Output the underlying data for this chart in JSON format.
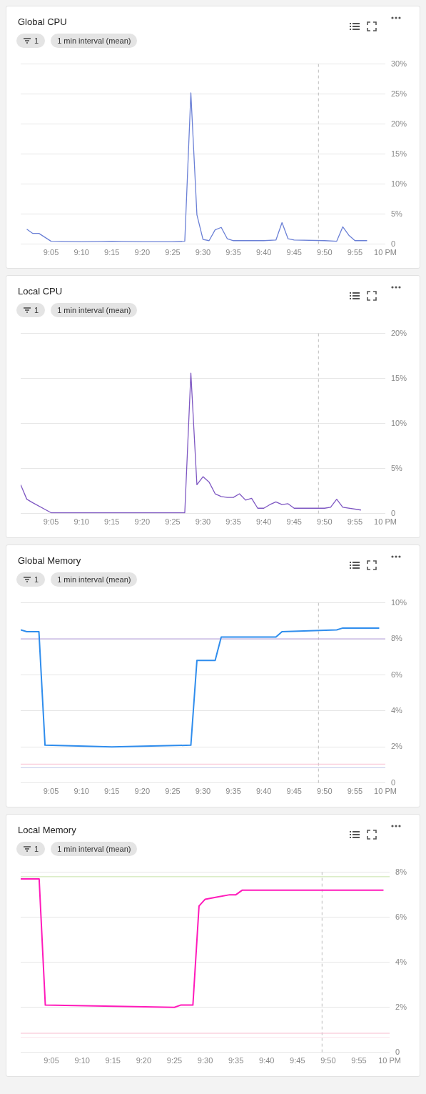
{
  "chart_data": [
    {
      "type": "line",
      "title": "Global CPU",
      "subtitle": "1 min interval (mean)",
      "annotations": [
        "1"
      ],
      "xlim": [
        9.0,
        10.0
      ],
      "xticks": [
        {
          "value": 9.0833,
          "label": "9:05"
        },
        {
          "value": 9.1667,
          "label": "9:10"
        },
        {
          "value": 9.25,
          "label": "9:15"
        },
        {
          "value": 9.3333,
          "label": "9:20"
        },
        {
          "value": 9.4167,
          "label": "9:25"
        },
        {
          "value": 9.5,
          "label": "9:30"
        },
        {
          "value": 9.5833,
          "label": "9:35"
        },
        {
          "value": 9.6667,
          "label": "9:40"
        },
        {
          "value": 9.75,
          "label": "9:45"
        },
        {
          "value": 9.8333,
          "label": "9:50"
        },
        {
          "value": 9.9167,
          "label": "9:55"
        },
        {
          "value": 10.0,
          "label": "10 PM"
        }
      ],
      "ylim": [
        0,
        30
      ],
      "yticks": [
        {
          "value": 0,
          "label": "0"
        },
        {
          "value": 5,
          "label": "5%"
        },
        {
          "value": 10,
          "label": "10%"
        },
        {
          "value": 15,
          "label": "15%"
        },
        {
          "value": 20,
          "label": "20%"
        },
        {
          "value": 25,
          "label": "25%"
        },
        {
          "value": 30,
          "label": "30%"
        }
      ],
      "grid": "y",
      "legend": false,
      "marker": "none",
      "line_style": "solid",
      "ref_lines": [
        {
          "axis": "x",
          "value": 9.8167,
          "color": "#bdbdbd",
          "line_style": "dashed"
        }
      ],
      "series": [
        {
          "color": "#6b80d6",
          "x": [
            9.0167,
            9.0333,
            9.05,
            9.0833,
            9.1667,
            9.25,
            9.3333,
            9.4167,
            9.45,
            9.4667,
            9.4833,
            9.5,
            9.5167,
            9.5333,
            9.55,
            9.5667,
            9.5833,
            9.6667,
            9.7,
            9.7167,
            9.7333,
            9.75,
            9.8333,
            9.8667,
            9.8833,
            9.9,
            9.9167,
            9.95
          ],
          "values": [
            2.5,
            1.8,
            1.8,
            0.5,
            0.4,
            0.5,
            0.4,
            0.4,
            0.5,
            25.2,
            4.9,
            0.8,
            0.6,
            2.4,
            2.8,
            0.9,
            0.6,
            0.6,
            0.7,
            3.6,
            0.9,
            0.7,
            0.6,
            0.5,
            2.9,
            1.5,
            0.6,
            0.6
          ]
        }
      ]
    },
    {
      "type": "line",
      "title": "Local CPU",
      "subtitle": "1 min interval (mean)",
      "annotations": [
        "1"
      ],
      "xlim": [
        9.0,
        10.0
      ],
      "xticks": [
        {
          "value": 9.0833,
          "label": "9:05"
        },
        {
          "value": 9.1667,
          "label": "9:10"
        },
        {
          "value": 9.25,
          "label": "9:15"
        },
        {
          "value": 9.3333,
          "label": "9:20"
        },
        {
          "value": 9.4167,
          "label": "9:25"
        },
        {
          "value": 9.5,
          "label": "9:30"
        },
        {
          "value": 9.5833,
          "label": "9:35"
        },
        {
          "value": 9.6667,
          "label": "9:40"
        },
        {
          "value": 9.75,
          "label": "9:45"
        },
        {
          "value": 9.8333,
          "label": "9:50"
        },
        {
          "value": 9.9167,
          "label": "9:55"
        },
        {
          "value": 10.0,
          "label": "10 PM"
        }
      ],
      "ylim": [
        0,
        20
      ],
      "yticks": [
        {
          "value": 0,
          "label": "0"
        },
        {
          "value": 5,
          "label": "5%"
        },
        {
          "value": 10,
          "label": "10%"
        },
        {
          "value": 15,
          "label": "15%"
        },
        {
          "value": 20,
          "label": "20%"
        }
      ],
      "grid": "y",
      "legend": false,
      "marker": "none",
      "line_style": "solid",
      "ref_lines": [
        {
          "axis": "x",
          "value": 9.8167,
          "color": "#bdbdbd",
          "line_style": "dashed"
        }
      ],
      "series": [
        {
          "color": "#7e57c2",
          "x": [
            9.0,
            9.0167,
            9.0333,
            9.0833,
            9.25,
            9.45,
            9.4667,
            9.4833,
            9.5,
            9.5167,
            9.5333,
            9.55,
            9.5667,
            9.5833,
            9.6,
            9.6167,
            9.6333,
            9.65,
            9.6667,
            9.6833,
            9.7,
            9.7167,
            9.7333,
            9.75,
            9.8333,
            9.85,
            9.8667,
            9.8833,
            9.9333
          ],
          "values": [
            3.2,
            1.6,
            1.2,
            0.1,
            0.1,
            0.1,
            15.6,
            3.2,
            4.1,
            3.5,
            2.2,
            1.9,
            1.8,
            1.8,
            2.2,
            1.5,
            1.7,
            0.6,
            0.6,
            1.0,
            1.3,
            1.0,
            1.1,
            0.6,
            0.6,
            0.7,
            1.6,
            0.7,
            0.4
          ]
        }
      ]
    },
    {
      "type": "line",
      "title": "Global Memory",
      "subtitle": "1 min interval (mean)",
      "annotations": [
        "1"
      ],
      "xlim": [
        9.0,
        10.0
      ],
      "xticks": [
        {
          "value": 9.0833,
          "label": "9:05"
        },
        {
          "value": 9.1667,
          "label": "9:10"
        },
        {
          "value": 9.25,
          "label": "9:15"
        },
        {
          "value": 9.3333,
          "label": "9:20"
        },
        {
          "value": 9.4167,
          "label": "9:25"
        },
        {
          "value": 9.5,
          "label": "9:30"
        },
        {
          "value": 9.5833,
          "label": "9:35"
        },
        {
          "value": 9.6667,
          "label": "9:40"
        },
        {
          "value": 9.75,
          "label": "9:45"
        },
        {
          "value": 9.8333,
          "label": "9:50"
        },
        {
          "value": 9.9167,
          "label": "9:55"
        },
        {
          "value": 10.0,
          "label": "10 PM"
        }
      ],
      "ylim": [
        0,
        10
      ],
      "yticks": [
        {
          "value": 0,
          "label": "0"
        },
        {
          "value": 2,
          "label": "2%"
        },
        {
          "value": 4,
          "label": "4%"
        },
        {
          "value": 6,
          "label": "6%"
        },
        {
          "value": 8,
          "label": "8%"
        },
        {
          "value": 10,
          "label": "10%"
        }
      ],
      "grid": "y",
      "legend": false,
      "marker": "none",
      "line_style": "solid",
      "ref_lines": [
        {
          "axis": "x",
          "value": 9.8167,
          "color": "#bdbdbd",
          "line_style": "dashed"
        },
        {
          "axis": "y",
          "value": 8,
          "color": "#b39ddb",
          "line_style": "solid"
        },
        {
          "axis": "y",
          "value": 1.05,
          "color": "#f8bbd0",
          "line_style": "solid"
        },
        {
          "axis": "y",
          "value": 0.85,
          "color": "#c5cae9",
          "line_style": "solid"
        }
      ],
      "series": [
        {
          "color": "#2f8ded",
          "x": [
            9.0,
            9.0167,
            9.05,
            9.0667,
            9.25,
            9.4667,
            9.4833,
            9.5333,
            9.55,
            9.7,
            9.7167,
            9.8667,
            9.8833,
            9.9833
          ],
          "values": [
            8.5,
            8.4,
            8.4,
            2.1,
            2.0,
            2.1,
            6.8,
            6.8,
            8.1,
            8.1,
            8.4,
            8.5,
            8.6,
            8.6
          ]
        }
      ]
    },
    {
      "type": "line",
      "title": "Local Memory",
      "subtitle": "1 min interval (mean)",
      "annotations": [
        "1"
      ],
      "xlim": [
        9.0,
        10.0
      ],
      "xticks": [
        {
          "value": 9.0833,
          "label": "9:05"
        },
        {
          "value": 9.1667,
          "label": "9:10"
        },
        {
          "value": 9.25,
          "label": "9:15"
        },
        {
          "value": 9.3333,
          "label": "9:20"
        },
        {
          "value": 9.4167,
          "label": "9:25"
        },
        {
          "value": 9.5,
          "label": "9:30"
        },
        {
          "value": 9.5833,
          "label": "9:35"
        },
        {
          "value": 9.6667,
          "label": "9:40"
        },
        {
          "value": 9.75,
          "label": "9:45"
        },
        {
          "value": 9.8333,
          "label": "9:50"
        },
        {
          "value": 9.9167,
          "label": "9:55"
        },
        {
          "value": 10.0,
          "label": "10 PM"
        }
      ],
      "ylim": [
        0,
        8
      ],
      "yticks": [
        {
          "value": 0,
          "label": "0"
        },
        {
          "value": 2,
          "label": "2%"
        },
        {
          "value": 4,
          "label": "4%"
        },
        {
          "value": 6,
          "label": "6%"
        },
        {
          "value": 8,
          "label": "8%"
        }
      ],
      "grid": "y",
      "legend": false,
      "marker": "none",
      "line_style": "solid",
      "ref_lines": [
        {
          "axis": "x",
          "value": 9.8167,
          "color": "#bdbdbd",
          "line_style": "dashed"
        },
        {
          "axis": "y",
          "value": 7.8,
          "color": "#c5e1a5",
          "line_style": "solid"
        },
        {
          "axis": "y",
          "value": 0.85,
          "color": "#f8bbd0",
          "line_style": "solid"
        },
        {
          "axis": "y",
          "value": 0.67,
          "color": "#fce4ec",
          "line_style": "solid"
        }
      ],
      "series": [
        {
          "color": "#ff1aba",
          "x": [
            9.0,
            9.05,
            9.0667,
            9.4167,
            9.4333,
            9.4667,
            9.4833,
            9.5,
            9.5333,
            9.5667,
            9.5833,
            9.6,
            9.9833
          ],
          "values": [
            7.7,
            7.7,
            2.1,
            2.0,
            2.1,
            2.1,
            6.5,
            6.8,
            6.9,
            7.0,
            7.0,
            7.2,
            7.2
          ]
        }
      ]
    }
  ]
}
